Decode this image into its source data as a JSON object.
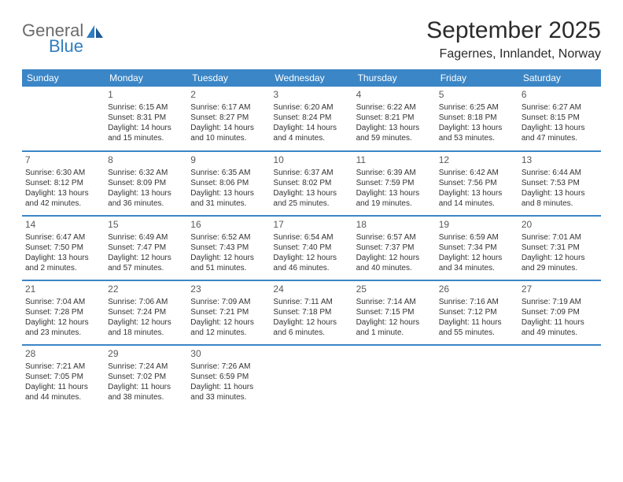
{
  "brand": {
    "name1": "General",
    "name2": "Blue"
  },
  "title": "September 2025",
  "location": "Fagernes, Innlandet, Norway",
  "colors": {
    "header_bg": "#3b86c6",
    "header_text": "#ffffff",
    "rule": "#3b86c6",
    "body_text": "#333333",
    "logo_gray": "#6b6b6b",
    "logo_blue": "#2f7ec0",
    "background": "#ffffff"
  },
  "columns": [
    "Sunday",
    "Monday",
    "Tuesday",
    "Wednesday",
    "Thursday",
    "Friday",
    "Saturday"
  ],
  "weeks": [
    [
      null,
      {
        "n": "1",
        "sr": "6:15 AM",
        "ss": "8:31 PM",
        "dl": "14 hours and 15 minutes."
      },
      {
        "n": "2",
        "sr": "6:17 AM",
        "ss": "8:27 PM",
        "dl": "14 hours and 10 minutes."
      },
      {
        "n": "3",
        "sr": "6:20 AM",
        "ss": "8:24 PM",
        "dl": "14 hours and 4 minutes."
      },
      {
        "n": "4",
        "sr": "6:22 AM",
        "ss": "8:21 PM",
        "dl": "13 hours and 59 minutes."
      },
      {
        "n": "5",
        "sr": "6:25 AM",
        "ss": "8:18 PM",
        "dl": "13 hours and 53 minutes."
      },
      {
        "n": "6",
        "sr": "6:27 AM",
        "ss": "8:15 PM",
        "dl": "13 hours and 47 minutes."
      }
    ],
    [
      {
        "n": "7",
        "sr": "6:30 AM",
        "ss": "8:12 PM",
        "dl": "13 hours and 42 minutes."
      },
      {
        "n": "8",
        "sr": "6:32 AM",
        "ss": "8:09 PM",
        "dl": "13 hours and 36 minutes."
      },
      {
        "n": "9",
        "sr": "6:35 AM",
        "ss": "8:06 PM",
        "dl": "13 hours and 31 minutes."
      },
      {
        "n": "10",
        "sr": "6:37 AM",
        "ss": "8:02 PM",
        "dl": "13 hours and 25 minutes."
      },
      {
        "n": "11",
        "sr": "6:39 AM",
        "ss": "7:59 PM",
        "dl": "13 hours and 19 minutes."
      },
      {
        "n": "12",
        "sr": "6:42 AM",
        "ss": "7:56 PM",
        "dl": "13 hours and 14 minutes."
      },
      {
        "n": "13",
        "sr": "6:44 AM",
        "ss": "7:53 PM",
        "dl": "13 hours and 8 minutes."
      }
    ],
    [
      {
        "n": "14",
        "sr": "6:47 AM",
        "ss": "7:50 PM",
        "dl": "13 hours and 2 minutes."
      },
      {
        "n": "15",
        "sr": "6:49 AM",
        "ss": "7:47 PM",
        "dl": "12 hours and 57 minutes."
      },
      {
        "n": "16",
        "sr": "6:52 AM",
        "ss": "7:43 PM",
        "dl": "12 hours and 51 minutes."
      },
      {
        "n": "17",
        "sr": "6:54 AM",
        "ss": "7:40 PM",
        "dl": "12 hours and 46 minutes."
      },
      {
        "n": "18",
        "sr": "6:57 AM",
        "ss": "7:37 PM",
        "dl": "12 hours and 40 minutes."
      },
      {
        "n": "19",
        "sr": "6:59 AM",
        "ss": "7:34 PM",
        "dl": "12 hours and 34 minutes."
      },
      {
        "n": "20",
        "sr": "7:01 AM",
        "ss": "7:31 PM",
        "dl": "12 hours and 29 minutes."
      }
    ],
    [
      {
        "n": "21",
        "sr": "7:04 AM",
        "ss": "7:28 PM",
        "dl": "12 hours and 23 minutes."
      },
      {
        "n": "22",
        "sr": "7:06 AM",
        "ss": "7:24 PM",
        "dl": "12 hours and 18 minutes."
      },
      {
        "n": "23",
        "sr": "7:09 AM",
        "ss": "7:21 PM",
        "dl": "12 hours and 12 minutes."
      },
      {
        "n": "24",
        "sr": "7:11 AM",
        "ss": "7:18 PM",
        "dl": "12 hours and 6 minutes."
      },
      {
        "n": "25",
        "sr": "7:14 AM",
        "ss": "7:15 PM",
        "dl": "12 hours and 1 minute."
      },
      {
        "n": "26",
        "sr": "7:16 AM",
        "ss": "7:12 PM",
        "dl": "11 hours and 55 minutes."
      },
      {
        "n": "27",
        "sr": "7:19 AM",
        "ss": "7:09 PM",
        "dl": "11 hours and 49 minutes."
      }
    ],
    [
      {
        "n": "28",
        "sr": "7:21 AM",
        "ss": "7:05 PM",
        "dl": "11 hours and 44 minutes."
      },
      {
        "n": "29",
        "sr": "7:24 AM",
        "ss": "7:02 PM",
        "dl": "11 hours and 38 minutes."
      },
      {
        "n": "30",
        "sr": "7:26 AM",
        "ss": "6:59 PM",
        "dl": "11 hours and 33 minutes."
      },
      null,
      null,
      null,
      null
    ]
  ],
  "labels": {
    "sunrise": "Sunrise:",
    "sunset": "Sunset:",
    "daylight": "Daylight:"
  }
}
